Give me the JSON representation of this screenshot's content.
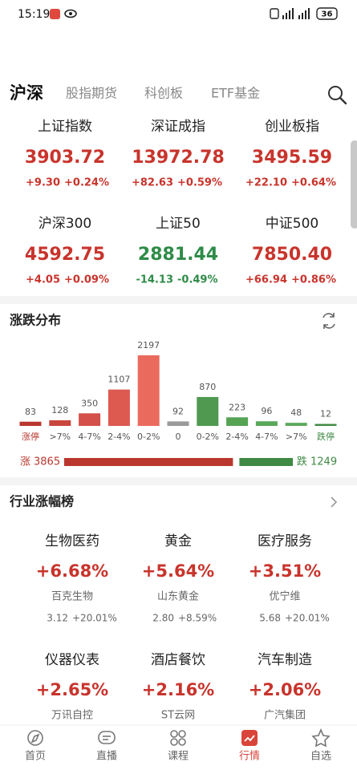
{
  "status_bar": {
    "time": "15:19",
    "battery": "36"
  },
  "tabs": [
    "沪深",
    "股指期货",
    "科创板",
    "ETF基金"
  ],
  "active_tab": 0,
  "indices": [
    {
      "name": "上证指数",
      "value": "3903.72",
      "change": "+9.30",
      "percent": "+0.24%",
      "color": "#c8342c"
    },
    {
      "name": "深证成指",
      "value": "13972.78",
      "change": "+82.63",
      "percent": "+0.59%",
      "color": "#c8342c"
    },
    {
      "name": "创业板指",
      "value": "3495.59",
      "change": "+22.10",
      "percent": "+0.64%",
      "color": "#c8342c"
    },
    {
      "name": "沪深300",
      "value": "4592.75",
      "change": "+4.05",
      "percent": "+0.09%",
      "color": "#c8342c"
    },
    {
      "name": "上证50",
      "value": "2881.44",
      "change": "-14.13",
      "percent": "-0.49%",
      "color": "#2e8b47"
    },
    {
      "name": "中证500",
      "value": "7850.40",
      "change": "+66.94",
      "percent": "+0.86%",
      "color": "#c8342c"
    }
  ],
  "distribution": {
    "title": "涨跌分布",
    "labels": [
      "涨停",
      ">7%",
      "4-7%",
      "2-4%",
      "0-2%",
      "0",
      "0-2%",
      "2-4%",
      "4-7%",
      ">7%",
      "跌停"
    ],
    "values": [
      83,
      128,
      350,
      1107,
      2197,
      92,
      870,
      223,
      96,
      48,
      12
    ],
    "colors": [
      "#b9372e",
      "#c9463c",
      "#d4504a",
      "#dc5a50",
      "#ea6a5e",
      "#9a9a9a",
      "#4f9a50",
      "#56a356",
      "#5aa75a",
      "#5ca95c",
      "#3f8a44"
    ],
    "up_label": "涨",
    "up_count": 3865,
    "up_color": "#b9372e",
    "down_label": "跌",
    "down_count": 1249,
    "down_color": "#3f8a44"
  },
  "industry": {
    "title": "行业涨幅榜",
    "items": [
      {
        "name": "生物医药",
        "percent": "+6.68%",
        "stock": "百克生物",
        "price": "3.12",
        "stock_percent": "+20.01%"
      },
      {
        "name": "黄金",
        "percent": "+5.64%",
        "stock": "山东黄金",
        "price": "2.80",
        "stock_percent": "+8.59%"
      },
      {
        "name": "医疗服务",
        "percent": "+3.51%",
        "stock": "优宁维",
        "price": "5.68",
        "stock_percent": "+20.01%"
      },
      {
        "name": "仪器仪表",
        "percent": "+2.65%",
        "stock": "万讯自控"
      },
      {
        "name": "酒店餐饮",
        "percent": "+2.16%",
        "stock": "ST云网"
      },
      {
        "name": "汽车制造",
        "percent": "+2.06%",
        "stock": "广汽集团"
      }
    ]
  },
  "nav": {
    "items": [
      "首页",
      "直播",
      "课程",
      "行情",
      "自选"
    ],
    "active": 3
  }
}
